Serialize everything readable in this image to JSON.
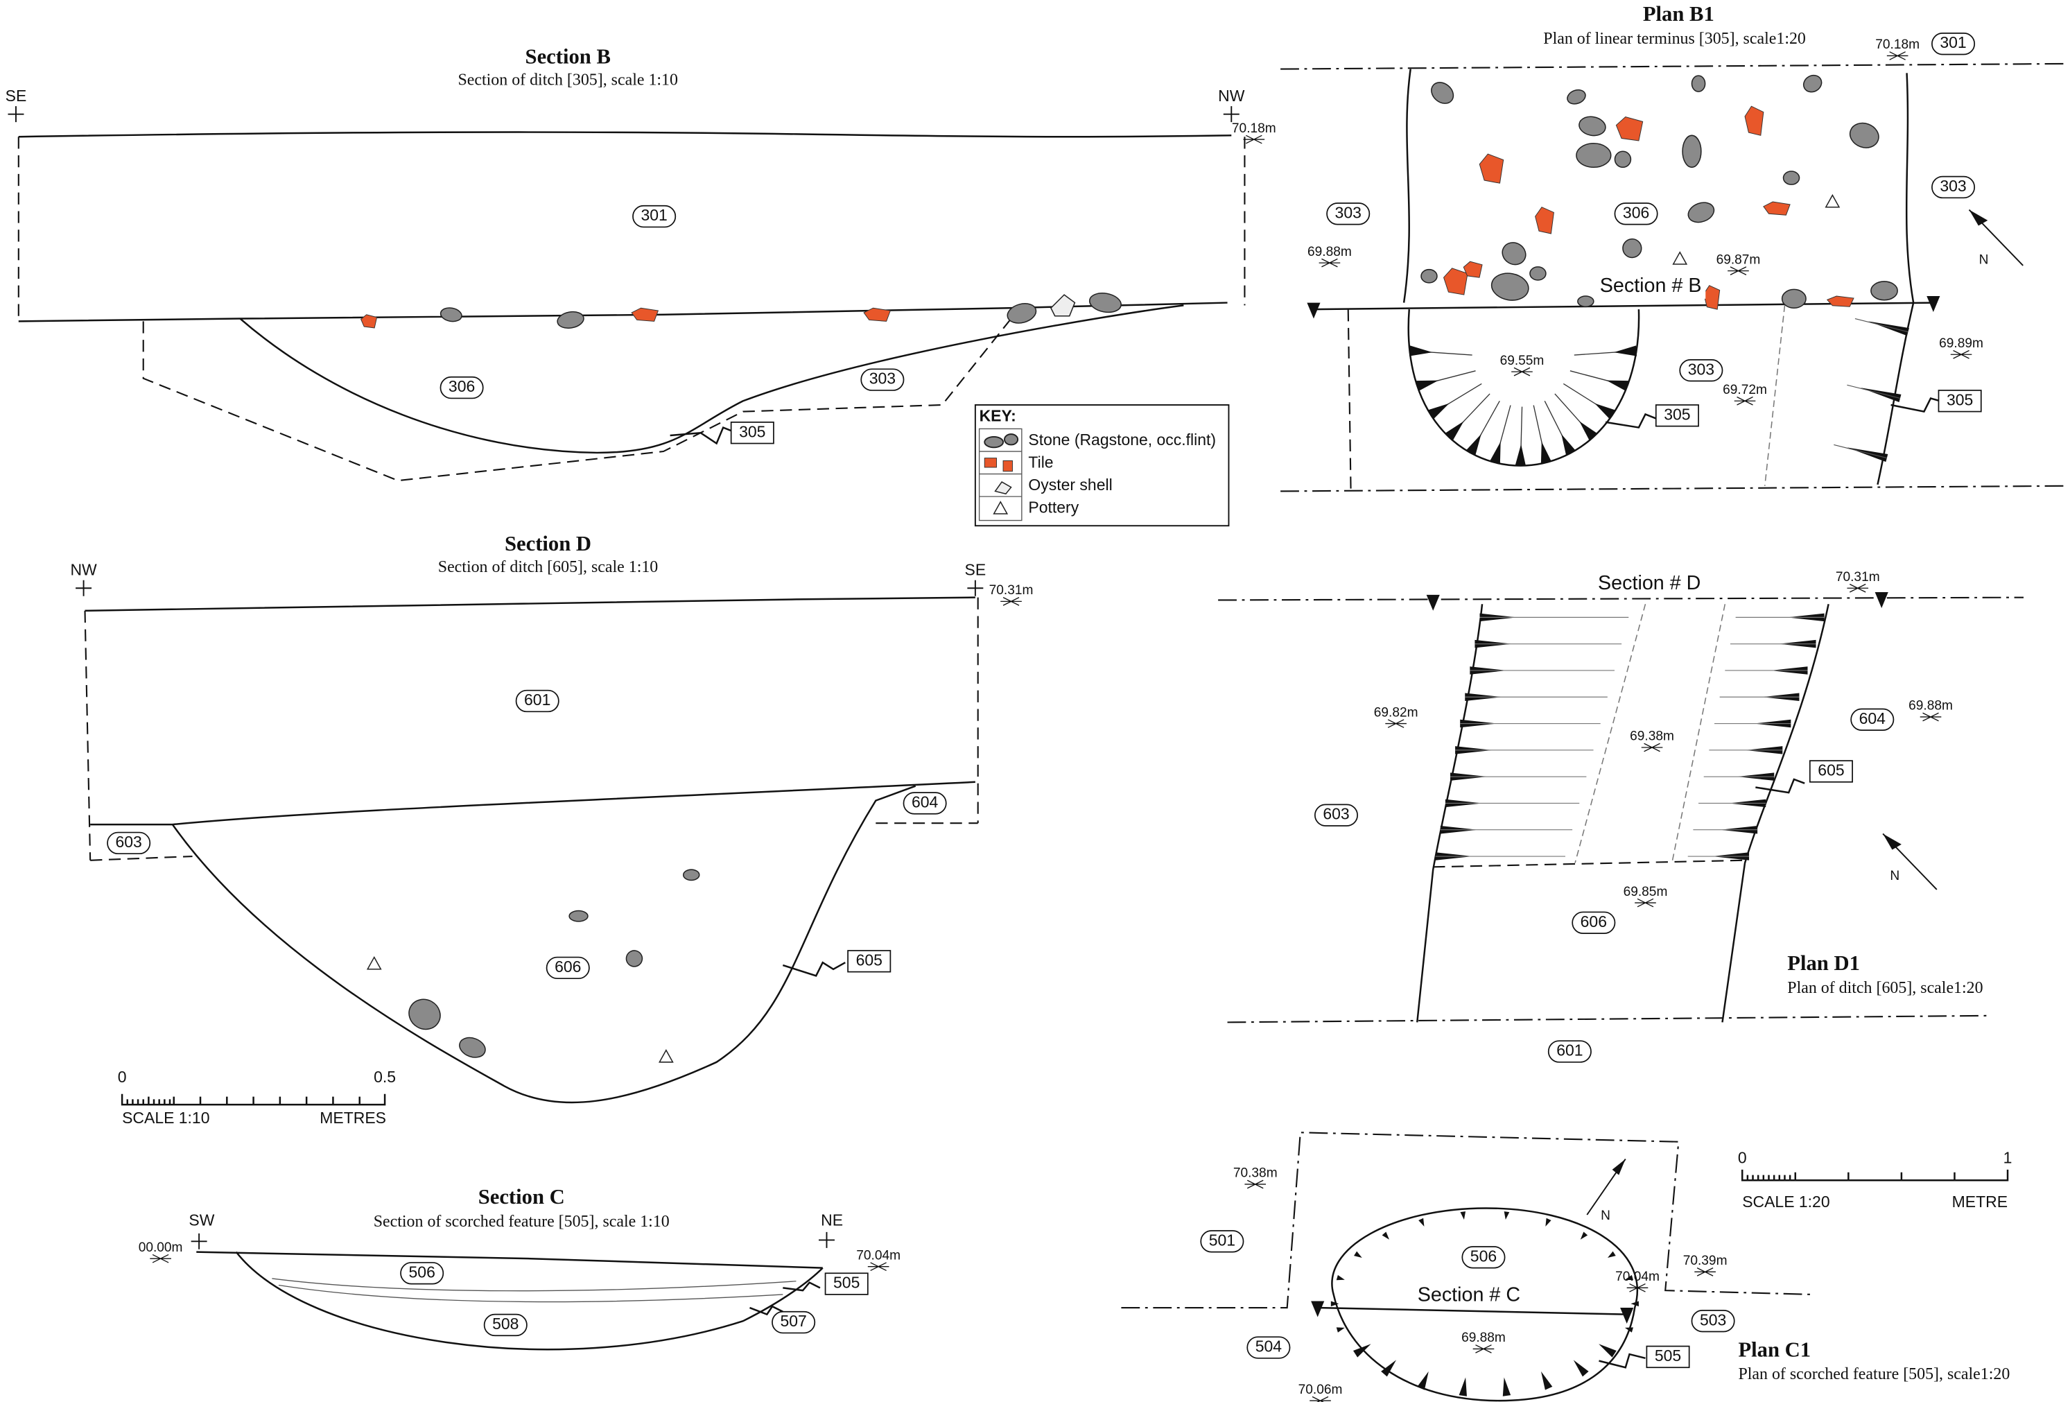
{
  "section_b": {
    "title": "Section B",
    "subtitle": "Section of ditch [305], scale 1:10",
    "orientation": [
      "SE",
      "NW"
    ],
    "levels": [
      "70.18m"
    ],
    "contexts": [
      "301",
      "306",
      "303"
    ],
    "cut": "305"
  },
  "key": {
    "title": "KEY:",
    "items": [
      "Stone (Ragstone, occ.flint)",
      "Tile",
      "Oyster shell",
      "Pottery"
    ]
  },
  "section_d": {
    "title": "Section D",
    "subtitle": "Section of ditch [605], scale 1:10",
    "orientation": [
      "NW",
      "SE"
    ],
    "levels": [
      "70.31m"
    ],
    "contexts": [
      "601",
      "603",
      "604",
      "606"
    ],
    "cut": "605"
  },
  "scale_10": {
    "ticks": [
      "0",
      "0.5"
    ],
    "label": "SCALE 1:10",
    "unit": "METRES"
  },
  "section_c": {
    "title": "Section C",
    "subtitle": "Section of scorched feature [505], scale 1:10",
    "orientation": [
      "SW",
      "NE"
    ],
    "levels": [
      "00.00m",
      "70.04m"
    ],
    "contexts": [
      "506",
      "508"
    ],
    "cuts": [
      "505",
      "507"
    ]
  },
  "plan_b1": {
    "title": "Plan B1",
    "subtitle": "Plan of linear terminus [305], scale1:20",
    "section_line": "Section # B",
    "levels": [
      "70.18m",
      "69.88m",
      "69.87m",
      "69.55m",
      "69.72m",
      "69.89m"
    ],
    "contexts": [
      "301",
      "303",
      "303",
      "306",
      "303"
    ],
    "cuts": [
      "305",
      "305"
    ],
    "north": "N"
  },
  "plan_d1": {
    "title": "Plan D1",
    "subtitle": "Plan of ditch [605], scale1:20",
    "section_line": "Section # D",
    "levels": [
      "70.31m",
      "69.82m",
      "69.38m",
      "69.88m",
      "69.85m"
    ],
    "contexts": [
      "604",
      "603",
      "606",
      "601"
    ],
    "cut": "605",
    "north": "N"
  },
  "scale_20": {
    "ticks": [
      "0",
      "1"
    ],
    "label": "SCALE 1:20",
    "unit": "METRE"
  },
  "plan_c1": {
    "title": "Plan C1",
    "subtitle": "Plan of  scorched feature [505], scale1:20",
    "section_line": "Section # C",
    "levels": [
      "70.38m",
      "70.04m",
      "70.39m",
      "69.88m",
      "70.06m"
    ],
    "contexts": [
      "501",
      "506",
      "503",
      "504"
    ],
    "cut": "505",
    "north": "N"
  }
}
